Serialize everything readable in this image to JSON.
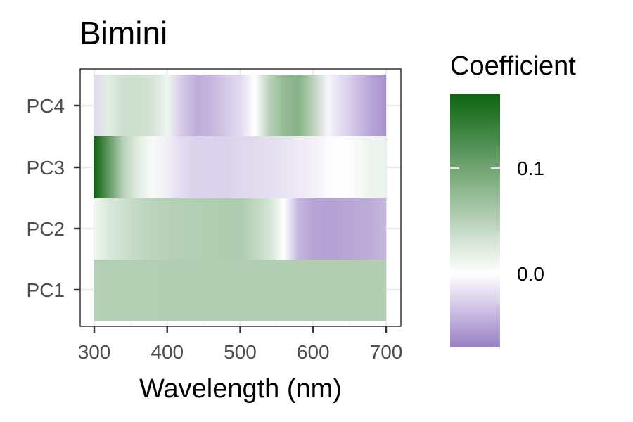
{
  "chart_data": {
    "type": "heatmap",
    "title": "Bimini",
    "xlabel": "Wavelength (nm)",
    "ylabel": "",
    "xlim": [
      300,
      700
    ],
    "x_ticks": [
      300,
      400,
      500,
      600,
      700
    ],
    "x_tick_labels": [
      "300",
      "400",
      "500",
      "600",
      "700"
    ],
    "y_categories": [
      "PC1",
      "PC2",
      "PC3",
      "PC4"
    ],
    "grid": true,
    "legend": {
      "title": "Coefficient",
      "placement": "right",
      "min": -0.07,
      "max": 0.17,
      "ticks": [
        0.0,
        0.1
      ],
      "tick_labels": [
        "0.0",
        "0.1"
      ],
      "low_color": "#9a80c6",
      "mid_color": "#ffffff",
      "high_color": "#0d6410"
    },
    "series": [
      {
        "name": "PC1",
        "x": [
          300,
          320,
          340,
          360,
          380,
          400,
          420,
          440,
          460,
          480,
          500,
          520,
          540,
          560,
          580,
          600,
          620,
          640,
          660,
          680,
          700
        ],
        "values": [
          0.052,
          0.054,
          0.054,
          0.054,
          0.054,
          0.055,
          0.055,
          0.055,
          0.055,
          0.055,
          0.055,
          0.055,
          0.055,
          0.055,
          0.055,
          0.055,
          0.055,
          0.055,
          0.055,
          0.055,
          0.055
        ]
      },
      {
        "name": "PC2",
        "x": [
          300,
          320,
          340,
          360,
          380,
          400,
          420,
          440,
          460,
          480,
          500,
          520,
          540,
          560,
          580,
          600,
          620,
          640,
          660,
          680,
          700
        ],
        "values": [
          0.01,
          0.025,
          0.035,
          0.042,
          0.048,
          0.05,
          0.052,
          0.054,
          0.055,
          0.056,
          0.056,
          0.045,
          0.03,
          0.0,
          -0.04,
          -0.05,
          -0.052,
          -0.05,
          -0.048,
          -0.045,
          -0.04
        ]
      },
      {
        "name": "PC3",
        "x": [
          300,
          320,
          340,
          360,
          380,
          400,
          420,
          440,
          460,
          480,
          500,
          520,
          540,
          560,
          580,
          600,
          620,
          640,
          660,
          680,
          700
        ],
        "values": [
          0.17,
          0.11,
          0.05,
          0.02,
          0.005,
          -0.01,
          -0.02,
          -0.025,
          -0.025,
          -0.025,
          -0.022,
          -0.02,
          -0.018,
          -0.015,
          -0.012,
          -0.008,
          -0.003,
          0.0,
          0.005,
          0.012,
          0.015
        ]
      },
      {
        "name": "PC4",
        "x": [
          300,
          320,
          340,
          360,
          380,
          400,
          420,
          440,
          460,
          480,
          500,
          520,
          540,
          560,
          580,
          600,
          620,
          640,
          660,
          680,
          700
        ],
        "values": [
          -0.02,
          0.02,
          0.035,
          0.035,
          0.03,
          0.01,
          -0.03,
          -0.045,
          -0.04,
          -0.03,
          -0.02,
          0.0,
          0.05,
          0.075,
          0.085,
          0.05,
          -0.005,
          -0.02,
          -0.035,
          -0.05,
          -0.06
        ]
      }
    ]
  }
}
